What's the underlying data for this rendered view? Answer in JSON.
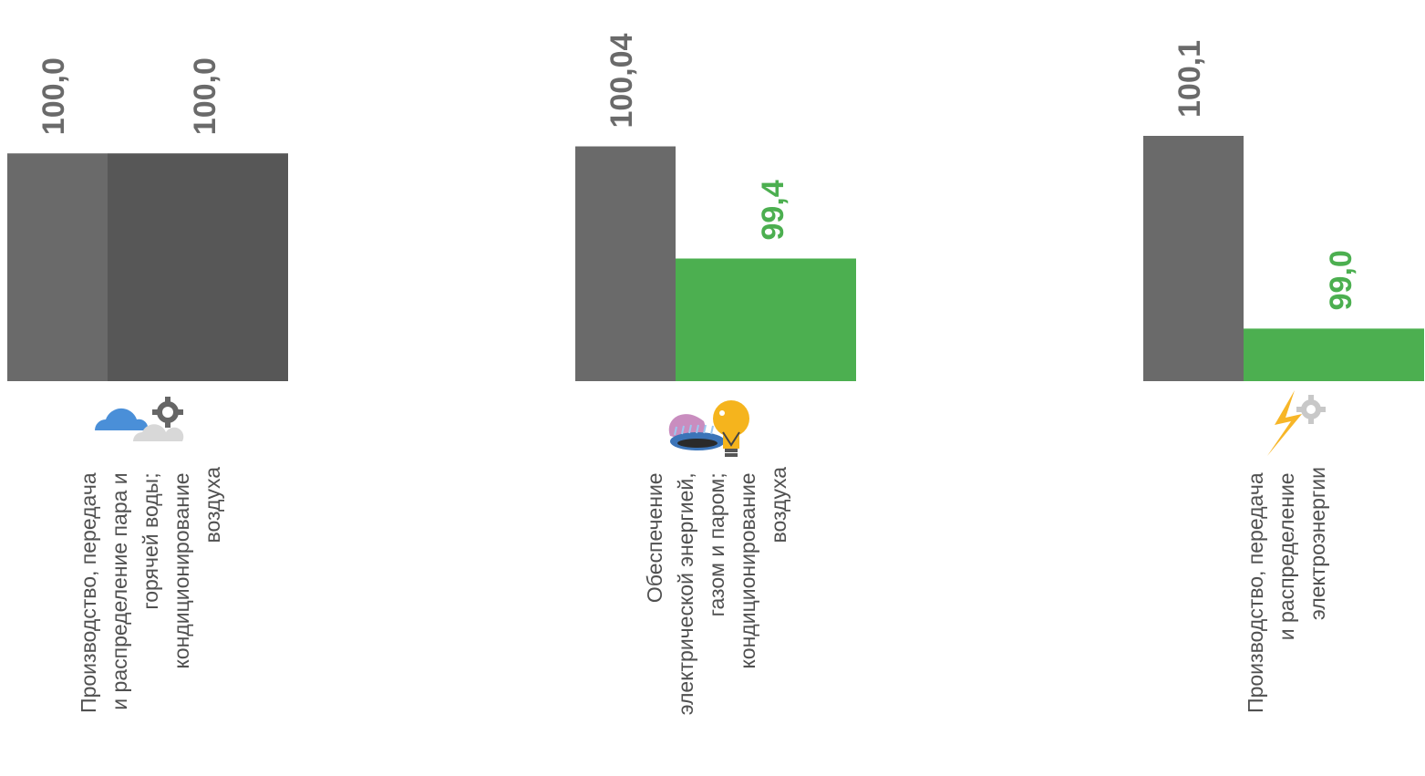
{
  "chart_data": {
    "type": "bar",
    "groups": [
      {
        "category": "Производство, передача и распределение пара и горячей воды; кондиционирование воздуха",
        "category_lines": [
          "Производство, передача",
          "и распределение пара и",
          "горячей воды;",
          "кондиционирование",
          "воздуха"
        ],
        "icon": "cloud-gear-icon",
        "values": [
          100.0,
          100.0
        ],
        "labels": [
          "100,0",
          "100,0"
        ]
      },
      {
        "category": "Обеспечение электрической энергией, газом и паром; кондиционирование воздуха",
        "category_lines": [
          "Обеспечение",
          "электрической энергией,",
          "газом и паром;",
          "кондиционирование",
          "воздуха"
        ],
        "icon": "gas-flame-lightbulb-icon",
        "values": [
          100.04,
          99.4
        ],
        "labels": [
          "100,04",
          "99,4"
        ]
      },
      {
        "category": "Производство, передача и распределение электроэнергии",
        "category_lines": [
          "Производство, передача",
          "и распределение",
          "электроэнергии"
        ],
        "icon": "lightning-gear-icon",
        "values": [
          100.1,
          99.0
        ],
        "labels": [
          "100,1",
          "99,0"
        ]
      }
    ],
    "series": [
      {
        "values": [
          100.0,
          100.04,
          100.1
        ],
        "color": "#6a6a6a"
      },
      {
        "values": [
          100.0,
          99.4,
          99.0
        ],
        "color": "#4caf50",
        "color_at_100": "#575757"
      }
    ],
    "value_label_colors": {
      "neutral": "#6a6a6a",
      "below_100": "#4caf50"
    }
  }
}
